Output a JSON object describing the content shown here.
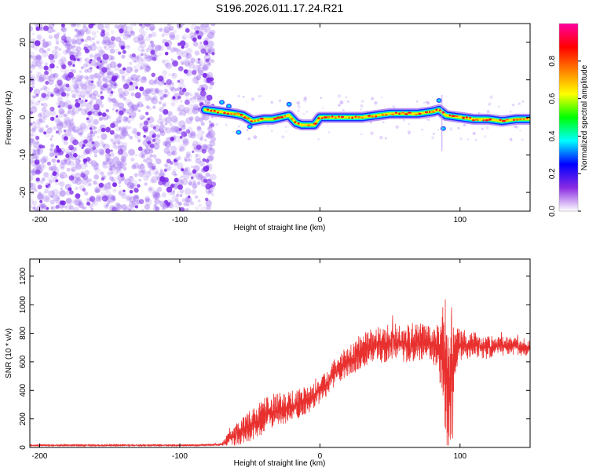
{
  "chart_data": [
    {
      "type": "heatmap",
      "title": "S196.2026.011.17.24.R21",
      "xlabel": "Height of straight line (km)",
      "ylabel": "Frequency (Hz)",
      "xlim": [
        -207,
        150
      ],
      "ylim": [
        -25,
        25
      ],
      "xticks": [
        -200,
        -100,
        0,
        100
      ],
      "yticks": [
        -20,
        -10,
        0,
        10,
        20
      ],
      "noise_region_x": [
        -207,
        -76
      ],
      "ridge": {
        "x": [
          -82,
          -72,
          -62,
          -55,
          -48,
          -40,
          -34,
          -28,
          -22,
          -17,
          -13,
          -8,
          -4,
          0,
          10,
          20,
          30,
          40,
          50,
          60,
          70,
          80,
          85,
          90,
          100,
          110,
          120,
          130,
          140,
          150
        ],
        "freq": [
          2,
          1.5,
          1,
          0.5,
          -1,
          -0.5,
          -0.5,
          0,
          0.5,
          -1.5,
          -2,
          -2,
          -2,
          0,
          0,
          0,
          0,
          0.5,
          1,
          1,
          1,
          1.5,
          2,
          0.5,
          0,
          -0.5,
          -0.5,
          -1,
          -0.5,
          -0.5
        ]
      },
      "colorbar": {
        "label": "Normalized spectral amplitude",
        "range": [
          0,
          1
        ],
        "ticks": [
          0.0,
          0.2,
          0.4,
          0.6,
          0.8
        ],
        "tick_labels": [
          "0.0",
          "0.2",
          "0.4",
          "0.6",
          "0.8"
        ],
        "colors": [
          "#ffffff",
          "#8a2be2",
          "#0000ff",
          "#00ffff",
          "#00ff00",
          "#ffff00",
          "#ff8000",
          "#ff0000",
          "#ff00a0"
        ]
      }
    },
    {
      "type": "line",
      "xlabel": "Height of straight line (km)",
      "ylabel": "SNR (10 * v/v)",
      "xlim": [
        -207,
        150
      ],
      "ylim": [
        0,
        1320
      ],
      "xticks": [
        -200,
        -100,
        0,
        100
      ],
      "yticks": [
        0,
        200,
        400,
        600,
        800,
        1000,
        1200
      ],
      "color": "#e8312f",
      "series": [
        {
          "name": "SNR",
          "x": [
            -207,
            -180,
            -150,
            -120,
            -90,
            -70,
            -65,
            -60,
            -55,
            -50,
            -45,
            -40,
            -35,
            -30,
            -25,
            -20,
            -15,
            -10,
            -5,
            0,
            5,
            10,
            15,
            20,
            25,
            30,
            35,
            40,
            45,
            50,
            55,
            60,
            65,
            70,
            75,
            80,
            85,
            88,
            90,
            92,
            94,
            96,
            100,
            110,
            120,
            130,
            140,
            150
          ],
          "y": [
            15,
            15,
            15,
            15,
            15,
            20,
            60,
            80,
            120,
            150,
            180,
            220,
            250,
            260,
            280,
            290,
            300,
            330,
            350,
            400,
            450,
            520,
            560,
            600,
            630,
            680,
            700,
            720,
            730,
            730,
            740,
            730,
            730,
            740,
            730,
            720,
            700,
            650,
            500,
            300,
            500,
            680,
            720,
            720,
            700,
            710,
            710,
            700
          ],
          "spread": [
            5,
            5,
            5,
            5,
            5,
            10,
            60,
            80,
            110,
            120,
            130,
            140,
            140,
            130,
            130,
            120,
            120,
            110,
            100,
            100,
            100,
            110,
            120,
            120,
            120,
            130,
            140,
            140,
            150,
            150,
            150,
            150,
            150,
            150,
            150,
            140,
            200,
            500,
            600,
            650,
            500,
            200,
            120,
            100,
            90,
            80,
            70,
            70
          ]
        }
      ]
    }
  ]
}
